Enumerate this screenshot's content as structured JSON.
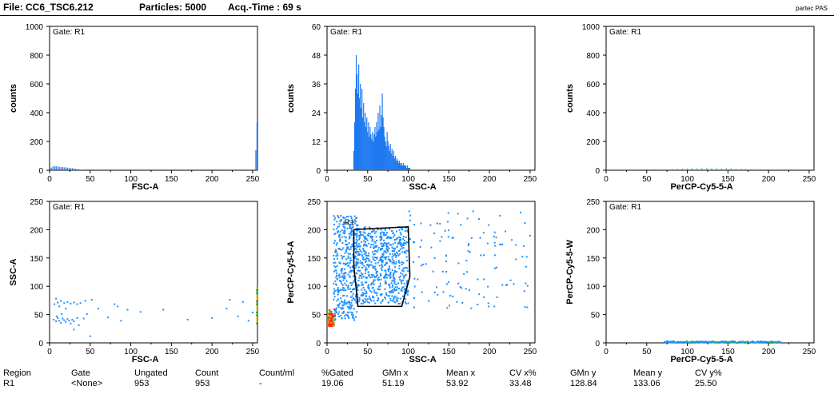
{
  "header": {
    "file_label": "File: CC6_TSC6.212",
    "particles_label": "Particles: 5000",
    "acq_time_label": "Acq.-Time : 69 s",
    "brand": "partec PAS"
  },
  "colors": {
    "histogram": "#1e78f0",
    "histogram_green": "#33c23a",
    "gate": "#000000",
    "density_low": "#1e8fff",
    "density_high": "#ff2020"
  },
  "chart_data": [
    {
      "type": "bar",
      "gate_label": "Gate: R1",
      "xlabel": "FSC-A",
      "ylabel": "counts",
      "xlim": [
        0,
        256
      ],
      "ylim": [
        0,
        1000
      ],
      "xticks": [
        "0",
        "50",
        "100",
        "150",
        "200",
        "250"
      ],
      "yticks": [
        "0",
        "200",
        "400",
        "600",
        "800",
        "1000"
      ],
      "bar_color": "#1e78f0",
      "bins_x": [
        2,
        4,
        6,
        8,
        10,
        12,
        14,
        16,
        18,
        20,
        22,
        24,
        26,
        28,
        30,
        32,
        34,
        36,
        38,
        40,
        254,
        256
      ],
      "bins_y": [
        18,
        25,
        30,
        28,
        26,
        24,
        22,
        22,
        20,
        20,
        18,
        16,
        15,
        14,
        12,
        10,
        8,
        6,
        5,
        3,
        140,
        330
      ]
    },
    {
      "type": "bar",
      "gate_label": "Gate: R1",
      "xlabel": "SSC-A",
      "ylabel": "counts",
      "xlim": [
        0,
        256
      ],
      "ylim": [
        0,
        60
      ],
      "xticks": [
        "0",
        "50",
        "100",
        "150",
        "200",
        "250"
      ],
      "yticks": [
        "0",
        "12",
        "24",
        "36",
        "48",
        "60"
      ],
      "bar_color": "#1e78f0",
      "bins_x": [
        33,
        34,
        35,
        36,
        37,
        38,
        39,
        40,
        41,
        42,
        43,
        44,
        45,
        46,
        47,
        48,
        49,
        50,
        51,
        52,
        53,
        54,
        55,
        56,
        57,
        58,
        59,
        60,
        61,
        62,
        63,
        64,
        65,
        66,
        67,
        68,
        69,
        70,
        71,
        72,
        73,
        74,
        75,
        76,
        77,
        78,
        79,
        80,
        81,
        82,
        83,
        84,
        85,
        86,
        87,
        88,
        89,
        90,
        91,
        92,
        93,
        94,
        95,
        96,
        97,
        98,
        99,
        100,
        101,
        102
      ],
      "bins_y": [
        8,
        20,
        34,
        48,
        40,
        32,
        44,
        30,
        36,
        26,
        34,
        22,
        28,
        20,
        24,
        18,
        22,
        16,
        20,
        14,
        18,
        15,
        13,
        16,
        12,
        15,
        18,
        14,
        20,
        16,
        24,
        17,
        27,
        18,
        23,
        32,
        22,
        18,
        14,
        12,
        10,
        16,
        12,
        10,
        8,
        11,
        7,
        9,
        6,
        8,
        5,
        6,
        4,
        5,
        4,
        3,
        4,
        3,
        2,
        3,
        2,
        3,
        2,
        2,
        2,
        1,
        2,
        1,
        1,
        1
      ]
    },
    {
      "type": "bar",
      "gate_label": "Gate: R1",
      "xlabel": "PerCP-Cy5-5-A",
      "ylabel": "counts",
      "xlim": [
        0,
        256
      ],
      "ylim": [
        0,
        1000
      ],
      "xticks": [
        "0",
        "50",
        "100",
        "150",
        "200",
        "250"
      ],
      "yticks": [
        "0",
        "200",
        "400",
        "600",
        "800",
        "1000"
      ],
      "bar_color": "#33c23a",
      "bins_x": [
        76,
        82,
        88,
        94,
        100,
        106,
        112,
        118,
        124,
        130,
        136,
        142,
        148,
        154,
        160,
        166,
        172,
        178,
        184,
        190,
        196,
        202,
        208
      ],
      "bins_y": [
        6,
        8,
        10,
        12,
        12,
        14,
        13,
        14,
        15,
        14,
        13,
        12,
        14,
        13,
        11,
        10,
        9,
        8,
        8,
        7,
        6,
        5,
        4
      ]
    },
    {
      "type": "scatter",
      "gate_label": "Gate: R1",
      "xlabel": "FSC-A",
      "ylabel": "SSC-A",
      "xlim": [
        0,
        256
      ],
      "ylim": [
        0,
        256
      ],
      "xticks": [
        "0",
        "50",
        "100",
        "150",
        "200",
        "250"
      ],
      "yticks": [
        "0",
        "50",
        "100",
        "150",
        "200",
        "250"
      ],
      "points": [
        [
          5,
          42
        ],
        [
          8,
          39
        ],
        [
          10,
          45
        ],
        [
          12,
          40
        ],
        [
          14,
          36
        ],
        [
          16,
          44
        ],
        [
          18,
          41
        ],
        [
          20,
          38
        ],
        [
          22,
          43
        ],
        [
          24,
          40
        ],
        [
          26,
          35
        ],
        [
          28,
          42
        ],
        [
          30,
          39
        ],
        [
          9,
          48
        ],
        [
          15,
          52
        ],
        [
          6,
          70
        ],
        [
          10,
          73
        ],
        [
          14,
          76
        ],
        [
          18,
          72
        ],
        [
          22,
          74
        ],
        [
          26,
          71
        ],
        [
          30,
          73
        ],
        [
          34,
          70
        ],
        [
          38,
          72
        ],
        [
          8,
          80
        ],
        [
          12,
          66
        ],
        [
          20,
          62
        ],
        [
          34,
          45
        ],
        [
          36,
          32
        ],
        [
          42,
          44
        ],
        [
          46,
          52
        ],
        [
          52,
          78
        ],
        [
          60,
          62
        ],
        [
          72,
          46
        ],
        [
          80,
          70
        ],
        [
          84,
          66
        ],
        [
          88,
          40
        ],
        [
          96,
          60
        ],
        [
          112,
          56
        ],
        [
          140,
          60
        ],
        [
          170,
          42
        ],
        [
          200,
          45
        ],
        [
          218,
          62
        ],
        [
          232,
          48
        ],
        [
          245,
          40
        ],
        [
          250,
          55
        ],
        [
          222,
          78
        ],
        [
          238,
          74
        ],
        [
          44,
          76
        ],
        [
          30,
          24
        ],
        [
          50,
          12
        ],
        [
          255,
          35
        ],
        [
          255,
          40
        ],
        [
          255,
          45
        ],
        [
          255,
          50
        ],
        [
          255,
          55
        ],
        [
          255,
          60
        ],
        [
          255,
          65
        ],
        [
          255,
          70
        ],
        [
          255,
          75
        ],
        [
          255,
          80
        ],
        [
          255,
          85
        ],
        [
          255,
          90
        ],
        [
          255,
          95
        ],
        [
          255,
          100
        ]
      ]
    },
    {
      "type": "scatter",
      "gate_label": "",
      "xlabel": "SSC-A",
      "ylabel": "PerCP-Cy5-5-A",
      "xlim": [
        0,
        256
      ],
      "ylim": [
        0,
        256
      ],
      "xticks": [
        "0",
        "50",
        "100",
        "150",
        "200",
        "250"
      ],
      "yticks": [
        "0",
        "50",
        "100",
        "150",
        "200",
        "250"
      ],
      "region_label": "R1",
      "gate_polygon": [
        [
          33,
          205
        ],
        [
          100,
          210
        ],
        [
          102,
          120
        ],
        [
          92,
          66
        ],
        [
          38,
          66
        ],
        [
          33,
          140
        ]
      ],
      "points_seed": 7,
      "point_count": 1500
    },
    {
      "type": "scatter",
      "gate_label": "Gate: R1",
      "xlabel": "PerCP-Cy5-5-A",
      "ylabel": "PerCP-Cy5-5-W",
      "xlim": [
        0,
        256
      ],
      "ylim": [
        0,
        256
      ],
      "xticks": [
        "0",
        "50",
        "100",
        "150",
        "200",
        "250"
      ],
      "yticks": [
        "0",
        "50",
        "100",
        "150",
        "200",
        "250"
      ],
      "points_seed": 11,
      "point_count": 260
    }
  ],
  "stats": {
    "headers": [
      "Region",
      "Gate",
      "Ungated",
      "Count",
      "Count/ml",
      "%Gated",
      "GMn x",
      "Mean x",
      "CV x%",
      "GMn y",
      "Mean y",
      "CV y%"
    ],
    "values": [
      "R1",
      "<None>",
      "953",
      "953",
      "-",
      "19.06",
      "51.19",
      "53.92",
      "33.48",
      "128.84",
      "133.06",
      "25.50"
    ]
  }
}
